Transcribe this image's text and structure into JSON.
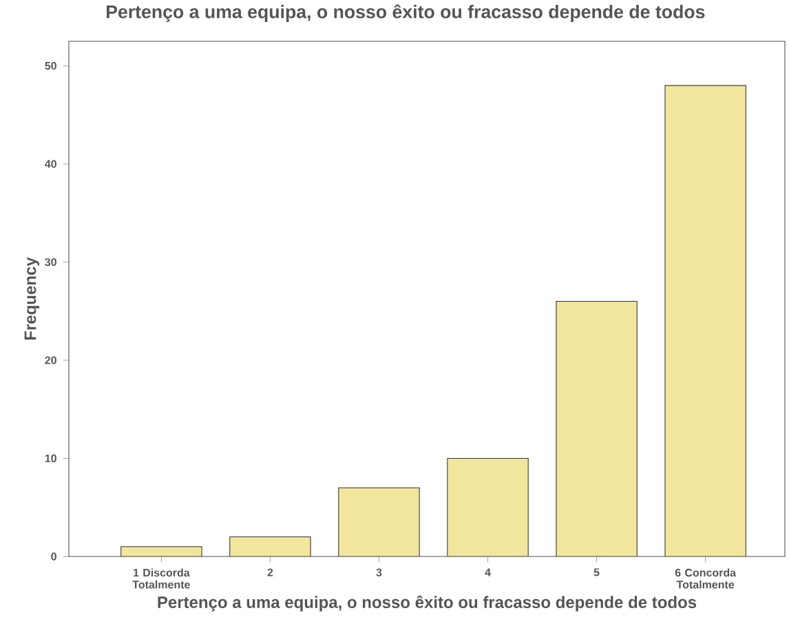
{
  "chart_data": {
    "type": "bar",
    "title": "Pertenço a uma equipa, o nosso êxito ou fracasso depende de todos",
    "xlabel": "Pertenço a uma equipa, o nosso êxito ou fracasso depende de todos",
    "ylabel": "Frequency",
    "categories": [
      "1 Discorda Totalmente",
      "2",
      "3",
      "4",
      "5",
      "6 Concorda Totalmente"
    ],
    "values": [
      1,
      2,
      7,
      10,
      26,
      48
    ],
    "color": "#f2e69c",
    "ylim": [
      0,
      52.5
    ],
    "yticks": [
      0,
      10,
      20,
      30,
      40,
      50
    ]
  }
}
